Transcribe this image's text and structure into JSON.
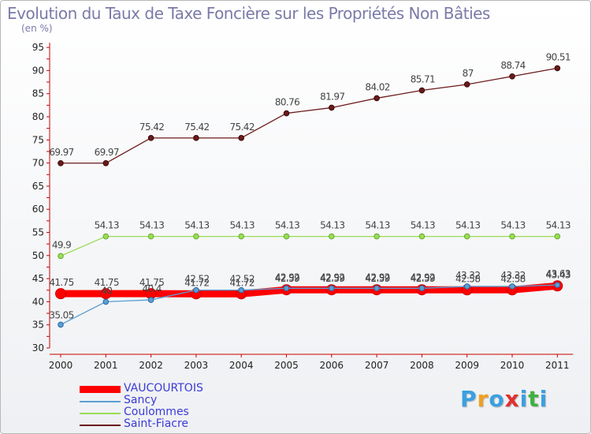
{
  "chart_data": {
    "type": "line",
    "title": "Evolution du Taux de Taxe Foncière sur les Propriétés Non Bâties",
    "ylabel": "(en %)",
    "xlabel": "",
    "categories": [
      "2000",
      "2001",
      "2002",
      "2003",
      "2004",
      "2005",
      "2006",
      "2007",
      "2008",
      "2009",
      "2010",
      "2011"
    ],
    "ylim": [
      30,
      95
    ],
    "yticks": [
      30,
      35,
      40,
      45,
      50,
      55,
      60,
      65,
      70,
      75,
      80,
      85,
      90,
      95
    ],
    "grid": false,
    "legend": "bottom-left",
    "series": [
      {
        "name": "VAUCOURTOIS",
        "color": "#ff0000",
        "values": [
          41.75,
          41.75,
          41.75,
          41.72,
          41.72,
          42.59,
          42.59,
          42.59,
          42.59,
          42.58,
          42.58,
          43.43
        ]
      },
      {
        "name": "Sancy",
        "color": "#5a9fd4",
        "values": [
          35.05,
          40,
          40.4,
          42.52,
          42.52,
          42.92,
          42.92,
          42.92,
          42.92,
          43.32,
          43.32,
          43.63
        ]
      },
      {
        "name": "Coulommes",
        "color": "#99dd55",
        "values": [
          49.9,
          54.13,
          54.13,
          54.13,
          54.13,
          54.13,
          54.13,
          54.13,
          54.13,
          54.13,
          54.13,
          54.13
        ]
      },
      {
        "name": "Saint-Fiacre",
        "color": "#6b1a1a",
        "values": [
          69.97,
          69.97,
          75.42,
          75.42,
          75.42,
          80.76,
          81.97,
          84.02,
          85.71,
          87,
          88.74,
          90.51
        ]
      }
    ],
    "point_labels": {
      "VAUCOURTOIS": [
        "41.75",
        "41.75",
        "41.75",
        "41.72",
        "41.72",
        "42.59",
        "42.59",
        "42.59",
        "42.59",
        "42.58",
        "42.58",
        "43.43"
      ],
      "Sancy": [
        "35.05",
        "40",
        "40.4",
        "42.52",
        "42.52",
        "42.92",
        "42.92",
        "42.92",
        "42.92",
        "43.32",
        "43.32",
        "43.63"
      ],
      "Coulommes": [
        "49.9",
        "54.13",
        "54.13",
        "54.13",
        "54.13",
        "54.13",
        "54.13",
        "54.13",
        "54.13",
        "54.13",
        "54.13",
        "54.13"
      ],
      "Saint-Fiacre": [
        "69.97",
        "69.97",
        "75.42",
        "75.42",
        "75.42",
        "80.76",
        "81.97",
        "84.02",
        "85.71",
        "87",
        "88.74",
        "90.51"
      ]
    }
  },
  "logo": {
    "letters": [
      "P",
      "r",
      "o",
      "x",
      "i",
      "t",
      "i"
    ],
    "colors": [
      "#3aa0e0",
      "#f0a020",
      "#3aa0e0",
      "#e03030",
      "#3aa0e0",
      "#40b040",
      "#3aa0e0"
    ]
  }
}
